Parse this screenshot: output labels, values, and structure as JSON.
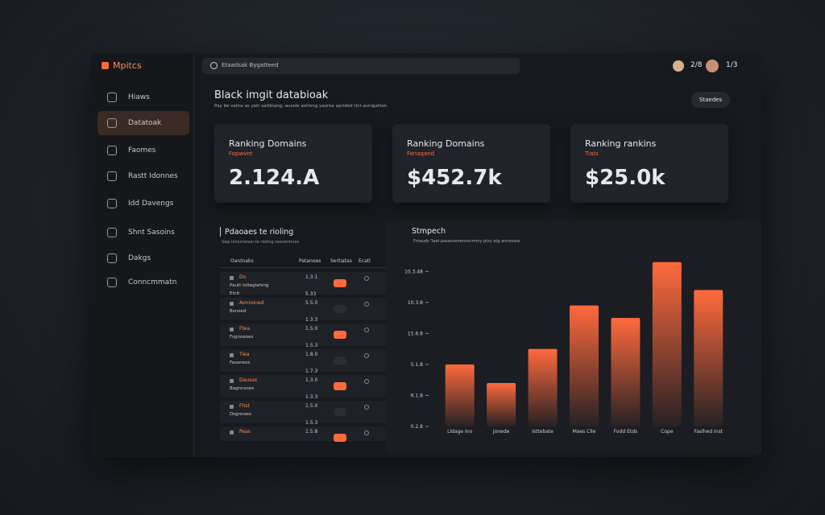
{
  "app": {
    "logo": "Mpitcs",
    "search": "Etaadsak Bygatteed",
    "users": [
      "2/8",
      "1/3"
    ]
  },
  "nav": [
    {
      "label": "Hiaws",
      "active": false
    },
    {
      "label": "Datatoak",
      "active": true
    },
    {
      "label": "Faomes",
      "active": false
    },
    {
      "label": "Rastt Idonnes",
      "active": false
    },
    {
      "label": "Idd Davengs",
      "active": false
    },
    {
      "label": "Shnt Sasoins",
      "active": false
    },
    {
      "label": "Dakgs",
      "active": false
    },
    {
      "label": "Conncmmatn",
      "active": false
    }
  ],
  "header": {
    "title": "Black imgit databioak",
    "subtitle": "Pay be vatne as yetr sattbiang, ausele aotiong yaoroe aprided tint avnigatten",
    "button": "Staedes"
  },
  "cards": [
    {
      "title": "Ranking Domains",
      "sub": "Fopwvnt",
      "value": "2.124.A"
    },
    {
      "title": "Ranking Domains",
      "sub": "Fanaqand",
      "value": "$452.7k"
    },
    {
      "title": "Ranking rankins",
      "sub": "Tiats",
      "value": "$25.0k"
    }
  ],
  "table": {
    "title": "Pdaoaes te rioling",
    "subtitle": "Swp lonyoranen te rioting seesmmnes",
    "columns": [
      "Oantnaks",
      "Patanoes",
      "Sertiatas",
      "Ecatl"
    ],
    "rows": [
      {
        "name": "Do",
        "detail": "Pautt Istteglahing",
        "extra": "Etcit",
        "values": [
          "1.3.1",
          "5.33"
        ],
        "highlight": true
      },
      {
        "name": "Aonnoned",
        "detail": "Bsnoed",
        "values": [
          "5.5.0",
          "1.3.3"
        ],
        "highlight": false
      },
      {
        "name": "Ftea",
        "detail": "Fsgnoeoes",
        "values": [
          "1.5.0",
          "1.5.3"
        ],
        "highlight": true
      },
      {
        "name": "Tiea",
        "detail": "Fasaneos",
        "values": [
          "1.8.0",
          "1.7.3"
        ],
        "highlight": false
      },
      {
        "name": "Dausas",
        "detail": "Bagnnsoes",
        "values": [
          "1.3.0",
          "1.3.3"
        ],
        "highlight": true
      },
      {
        "name": "Fhst",
        "detail": "Dsgnnses",
        "values": [
          "1.5.0",
          "1.5.3"
        ],
        "highlight": false
      },
      {
        "name": "Peas",
        "detail": "",
        "values": [
          "1.5.8"
        ],
        "highlight": true
      }
    ]
  },
  "chart": {
    "type": "bar",
    "title": "Stmpech",
    "subtitle": "Fmauds 'Iaat pasansonenoscrmny ptsy atg annoosss",
    "categories": [
      "Lldage Ino",
      "Jonede",
      "Isttebate",
      "Maes Clle",
      "Fodd Etds",
      "Cope",
      "Faslhed Inst"
    ],
    "values": [
      2.0,
      1.4,
      2.5,
      3.9,
      3.5,
      5.3,
      4.4
    ],
    "ylim": [
      0,
      5.5
    ],
    "yticks": [
      {
        "value": 0,
        "label": "0.2.8"
      },
      {
        "value": 1,
        "label": "6.1.8"
      },
      {
        "value": 2,
        "label": "5.1.8"
      },
      {
        "value": 3,
        "label": "15.6.8"
      },
      {
        "value": 4,
        "label": "10.3.8"
      },
      {
        "value": 5,
        "label": "10.3.48"
      }
    ],
    "color": "#ff6a3d"
  }
}
